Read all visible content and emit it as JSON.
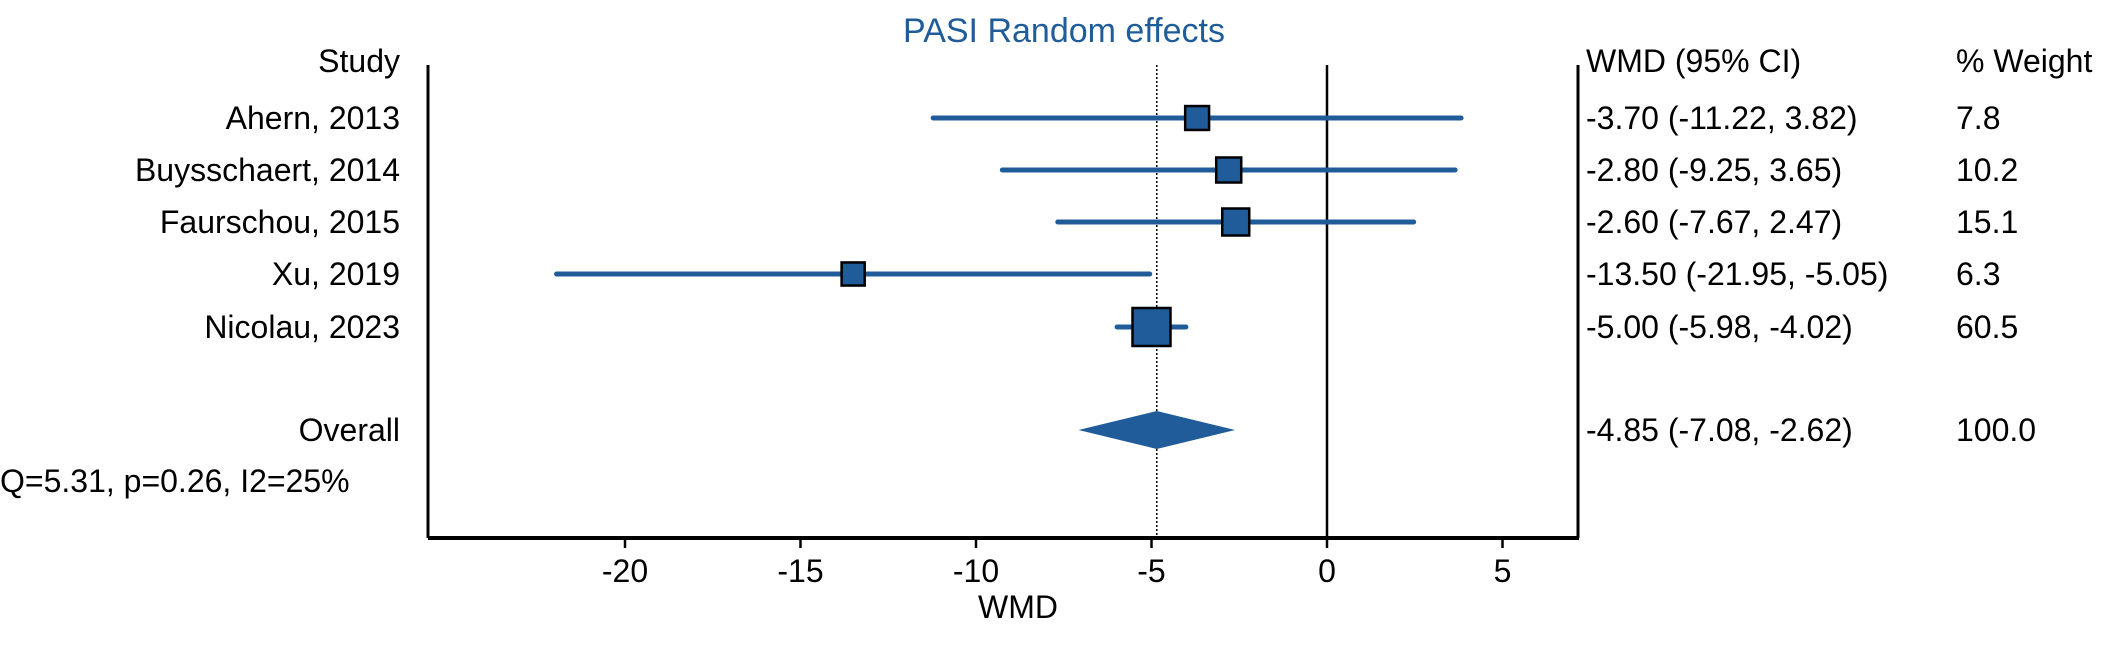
{
  "chart_data": {
    "type": "forest",
    "title": "PASI Random effects",
    "xlabel": "WMD",
    "xlim": [
      -23.3,
      5.1
    ],
    "xticks": [
      -20,
      -15,
      -10,
      -5,
      0,
      5
    ],
    "xtick_labels": [
      "-20",
      "-15",
      "-10",
      "-5",
      "0",
      "5"
    ],
    "reference_line": 0,
    "pooled_line": -4.85,
    "headers": {
      "study": "Study",
      "effect": "WMD (95% CI)",
      "weight": "% Weight"
    },
    "studies": [
      {
        "name": "Ahern, 2013",
        "estimate": -3.7,
        "lower": -11.22,
        "upper": 3.82,
        "weight": 7.8,
        "ci_text": "-3.70 (-11.22, 3.82)",
        "weight_text": "7.8"
      },
      {
        "name": "Buysschaert, 2014",
        "estimate": -2.8,
        "lower": -9.25,
        "upper": 3.65,
        "weight": 10.2,
        "ci_text": "-2.80 (-9.25, 3.65)",
        "weight_text": "10.2"
      },
      {
        "name": "Faurschou, 2015",
        "estimate": -2.6,
        "lower": -7.67,
        "upper": 2.47,
        "weight": 15.1,
        "ci_text": "-2.60 (-7.67, 2.47)",
        "weight_text": "15.1"
      },
      {
        "name": "Xu, 2019",
        "estimate": -13.5,
        "lower": -21.95,
        "upper": -5.05,
        "weight": 6.3,
        "ci_text": "-13.50 (-21.95, -5.05)",
        "weight_text": "6.3"
      },
      {
        "name": "Nicolau, 2023",
        "estimate": -5.0,
        "lower": -5.98,
        "upper": -4.02,
        "weight": 60.5,
        "ci_text": "-5.00 (-5.98, -4.02)",
        "weight_text": "60.5"
      }
    ],
    "overall": {
      "name": "Overall",
      "estimate": -4.85,
      "lower": -7.08,
      "upper": -2.62,
      "weight": 100.0,
      "ci_text": "-4.85 (-7.08, -2.62)",
      "weight_text": "100.0"
    },
    "heterogeneity": "Q=5.31, p=0.26, I2=25%",
    "colors": {
      "marker": "#1f5c99",
      "ci_line": "#1f5c99",
      "diamond": "#1f5c99",
      "title": "#1f5c99",
      "axis": "#000000"
    }
  }
}
